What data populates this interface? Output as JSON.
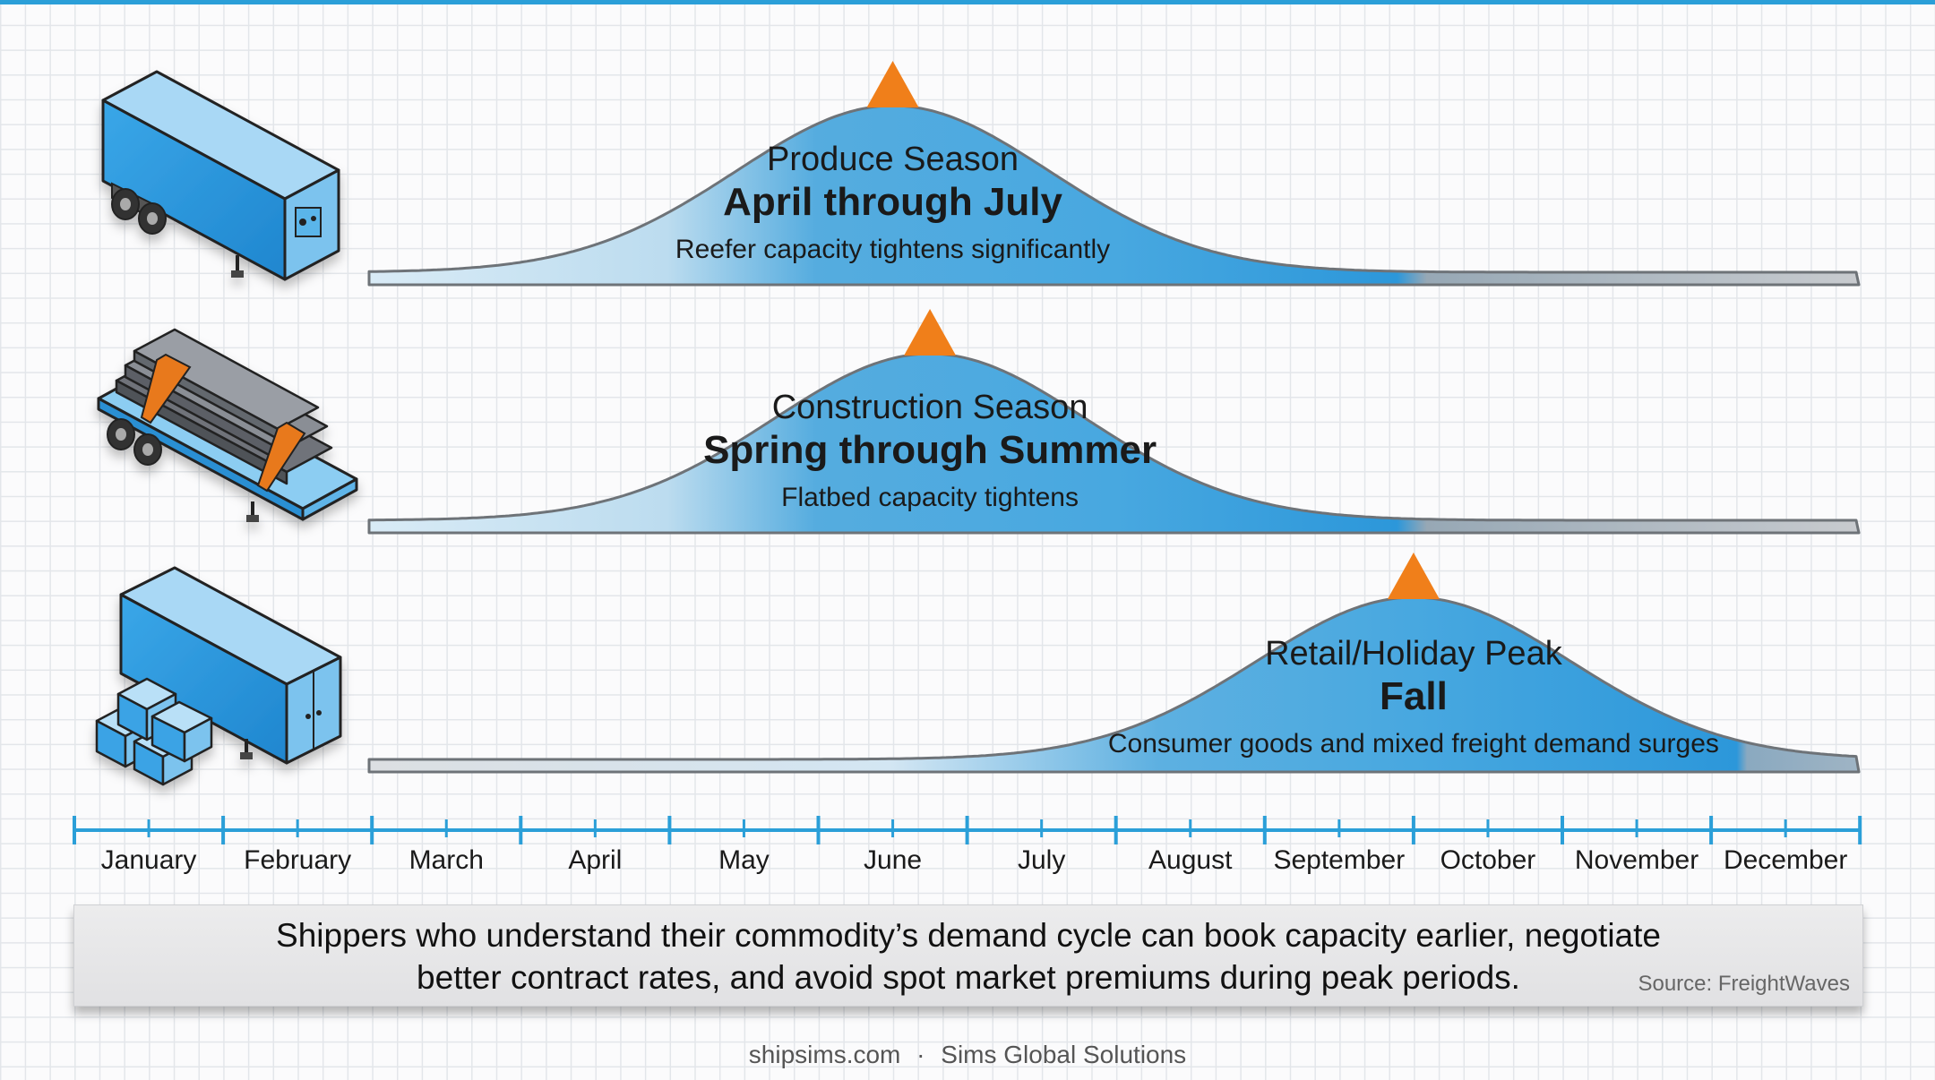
{
  "seasons": [
    {
      "id": "produce",
      "name": "Produce Season",
      "period": "April through July",
      "note": "Reefer capacity tightens significantly",
      "trailer_icon": "reefer-trailer-icon",
      "peak_month": 6,
      "range": [
        4,
        8
      ],
      "color": "#2c9be0"
    },
    {
      "id": "construction",
      "name": "Construction Season",
      "period": "Spring through Summer",
      "note": "Flatbed capacity tightens",
      "trailer_icon": "flatbed-trailer-icon",
      "peak_month": 6.25,
      "range": [
        4,
        8
      ],
      "color": "#2c9be0"
    },
    {
      "id": "retail",
      "name": "Retail/Holiday Peak",
      "period": "Fall",
      "note": "Consumer goods and mixed freight demand surges",
      "trailer_icon": "dry-van-trailer-icon",
      "peak_month": 9.5,
      "range": [
        7.7,
        12.1
      ],
      "color": "#2c9be0"
    }
  ],
  "timeline": {
    "months": [
      "January",
      "February",
      "March",
      "April",
      "May",
      "June",
      "July",
      "August",
      "September",
      "October",
      "November",
      "December"
    ]
  },
  "callout": {
    "line1": "Shippers who understand their commodity’s demand cycle can book capacity earlier, negotiate",
    "line2": "better contract rates, and avoid spot market premiums during peak periods.",
    "source": "Source: FreightWaves"
  },
  "footer": {
    "site": "shipsims.com",
    "separator": "·",
    "company": "Sims Global Solutions"
  },
  "colors": {
    "accent": "#2b9fd8",
    "peak_marker": "#f07f1a",
    "curve_outline": "#6e7378"
  }
}
